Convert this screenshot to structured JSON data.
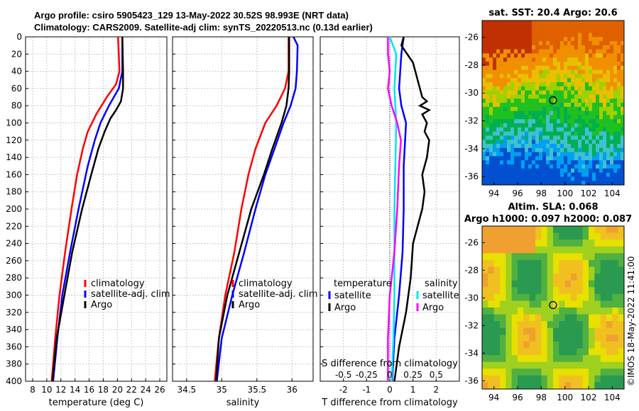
{
  "header": {
    "line1": "Argo profile: csiro 5905423_129 13-May-2022 30.52S 98.993E (NRT data)",
    "line2": "Climatology: CARS2009. Satellite-adj clim: synTS_20220513.nc (0.13d earlier)"
  },
  "colors": {
    "climatology": "#ff0000",
    "satellite_clim": "#0000ff",
    "argo": "#000000",
    "satellite_s": "#00e5ee",
    "argo_s": "#ff00ff"
  },
  "chart_data": [
    {
      "type": "line",
      "id": "temperature",
      "xlabel": "temperature (deg C)",
      "ylabel": "",
      "xlim": [
        7,
        27
      ],
      "ylim": [
        400,
        0
      ],
      "xticks": [
        8,
        10,
        12,
        14,
        16,
        18,
        20,
        22,
        24,
        26
      ],
      "yticks": [
        0,
        20,
        40,
        60,
        80,
        100,
        120,
        140,
        160,
        180,
        200,
        220,
        240,
        260,
        280,
        300,
        320,
        340,
        360,
        380,
        400
      ],
      "grid": true,
      "legend": [
        "climatology",
        "satellite-adj. clim",
        "Argo"
      ],
      "series": [
        {
          "name": "climatology",
          "depth": [
            0,
            40,
            55,
            70,
            90,
            110,
            130,
            160,
            200,
            250,
            300,
            350,
            400
          ],
          "values": [
            20.1,
            20.3,
            19.8,
            18.5,
            17.0,
            15.8,
            15.1,
            14.3,
            13.5,
            12.6,
            11.8,
            11.2,
            10.7
          ]
        },
        {
          "name": "satellite-adj. clim",
          "depth": [
            0,
            40,
            60,
            80,
            100,
            120,
            150,
            200,
            250,
            300,
            350,
            400
          ],
          "values": [
            20.7,
            20.7,
            20.2,
            18.8,
            17.6,
            16.8,
            15.8,
            14.5,
            13.3,
            12.2,
            11.5,
            10.9
          ]
        },
        {
          "name": "Argo",
          "depth": [
            0,
            40,
            60,
            75,
            85,
            95,
            110,
            130,
            160,
            200,
            250,
            300,
            350,
            400
          ],
          "values": [
            20.7,
            20.8,
            20.8,
            20.5,
            19.8,
            19.0,
            18.2,
            17.3,
            16.3,
            15.0,
            13.6,
            12.5,
            11.4,
            10.8
          ]
        }
      ]
    },
    {
      "type": "line",
      "id": "salinity",
      "xlabel": "salinity",
      "xlim": [
        34.3,
        36.3
      ],
      "ylim": [
        400,
        0
      ],
      "xticks": [
        34.5,
        35,
        35.5,
        36
      ],
      "grid": true,
      "legend": [
        "climatology",
        "satellite-adj. clim",
        "Argo"
      ],
      "series": [
        {
          "name": "climatology",
          "depth": [
            0,
            40,
            60,
            80,
            100,
            130,
            160,
            200,
            250,
            300,
            350,
            400
          ],
          "values": [
            35.95,
            35.95,
            35.9,
            35.78,
            35.62,
            35.48,
            35.38,
            35.28,
            35.18,
            35.05,
            34.96,
            34.9
          ]
        },
        {
          "name": "satellite-adj. clim",
          "depth": [
            0,
            10,
            40,
            60,
            80,
            100,
            130,
            160,
            200,
            250,
            300,
            350,
            400
          ],
          "values": [
            36.02,
            36.08,
            36.07,
            36.05,
            35.98,
            35.88,
            35.75,
            35.62,
            35.48,
            35.32,
            35.15,
            35.0,
            34.93
          ]
        },
        {
          "name": "Argo",
          "depth": [
            0,
            40,
            60,
            80,
            100,
            130,
            160,
            200,
            250,
            300,
            350,
            400
          ],
          "values": [
            35.96,
            35.96,
            35.95,
            35.92,
            35.85,
            35.72,
            35.6,
            35.42,
            35.25,
            35.08,
            34.96,
            34.92
          ]
        }
      ]
    },
    {
      "type": "line",
      "id": "difference",
      "xlabel": "T difference from climatology",
      "xlabel2": "S difference from climatology",
      "xlim": [
        -3,
        3
      ],
      "ylim": [
        400,
        0
      ],
      "xticks": [
        -2,
        -1,
        0,
        1,
        2
      ],
      "sticks_labels": [
        "-0.5",
        "-0.25",
        "0",
        "0.25",
        "0.5"
      ],
      "sticks_values": [
        -0.5,
        -0.25,
        0,
        0.25,
        0.5
      ],
      "legend_t_title": "temperature",
      "legend_s_title": "salinity",
      "legend_t": [
        "satellite",
        "Argo"
      ],
      "legend_s": [
        "satellite",
        "Argo"
      ],
      "series": [
        {
          "name": "T satellite",
          "depth": [
            0,
            20,
            60,
            80,
            100,
            150,
            200,
            250,
            300,
            350,
            400
          ],
          "values": [
            0.6,
            0.5,
            0.4,
            0.5,
            0.7,
            0.6,
            0.6,
            0.55,
            0.4,
            0.2,
            0.1
          ]
        },
        {
          "name": "T Argo",
          "depth": [
            0,
            10,
            30,
            50,
            70,
            75,
            80,
            85,
            90,
            100,
            110,
            120,
            140,
            160,
            180,
            200,
            240,
            280,
            320,
            360,
            400
          ],
          "values": [
            0.6,
            0.5,
            1.0,
            1.2,
            1.4,
            1.6,
            1.3,
            1.7,
            1.4,
            1.6,
            1.5,
            1.7,
            1.6,
            1.4,
            1.5,
            1.4,
            1.0,
            0.9,
            0.7,
            0.4,
            0.2
          ]
        },
        {
          "name": "S satellite",
          "depth": [
            0,
            20,
            60,
            100,
            150,
            200,
            250,
            300,
            350,
            400
          ],
          "values": [
            0.0,
            0.07,
            0.05,
            0.07,
            0.06,
            0.05,
            0.05,
            0.05,
            0.04,
            0.02
          ]
        },
        {
          "name": "S Argo",
          "depth": [
            0,
            20,
            40,
            60,
            80,
            100,
            120,
            150,
            200,
            250,
            300,
            350,
            400
          ],
          "values": [
            -0.02,
            -0.02,
            0.0,
            -0.02,
            0.02,
            0.08,
            0.12,
            0.1,
            0.08,
            0.05,
            0.0,
            -0.02,
            -0.02
          ]
        }
      ]
    },
    {
      "type": "heatmap",
      "id": "sst-map",
      "title": "sat. SST: 20.4 Argo: 20.6",
      "xticks": [
        94,
        96,
        98,
        100,
        102,
        104
      ],
      "yticks": [
        -26,
        -28,
        -30,
        -32,
        -34,
        -36
      ],
      "xlim": [
        93,
        105
      ],
      "ylim": [
        -36.6,
        -24.8
      ],
      "argo_position": [
        98.993,
        -30.52
      ]
    },
    {
      "type": "heatmap",
      "id": "sla-map",
      "title": "Altim. SLA: 0.068",
      "subtitle": "Argo h1000: 0.097 h2000: 0.087",
      "xticks": [
        94,
        96,
        98,
        100,
        102,
        104
      ],
      "yticks": [
        -26,
        -28,
        -30,
        -32,
        -34,
        -36
      ],
      "xlim": [
        93,
        105
      ],
      "ylim": [
        -36.6,
        -24.8
      ],
      "argo_position": [
        98.993,
        -30.52
      ]
    }
  ],
  "credit": "©IMOS 18-May-2022 11:41:00"
}
